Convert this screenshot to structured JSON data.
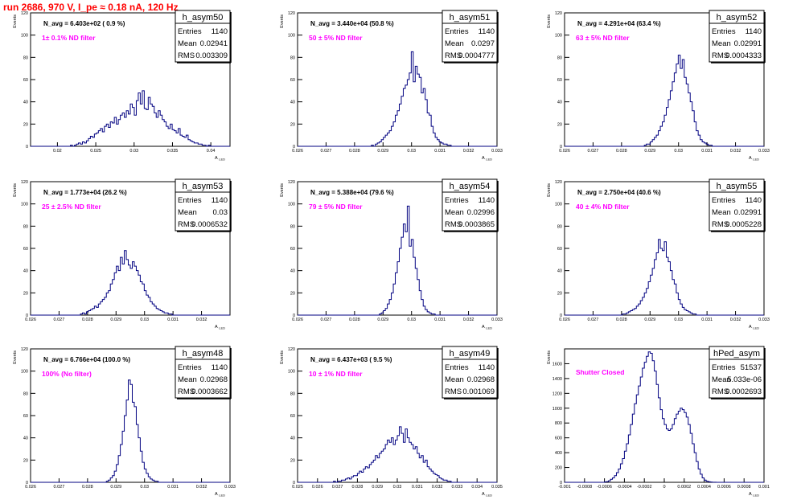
{
  "run_title": "run 2686,   970 V, I_pe ≈ 0.18 nA, 120 Hz",
  "labels": {
    "y_axis": "Events",
    "x_axis": "A",
    "x_axis_sub": "LED",
    "entries": "Entries",
    "mean": "Mean",
    "rms": "RMS"
  },
  "colors": {
    "hist_line": "#000080",
    "filter_text": "#ff00ff",
    "title": "#ff0000"
  },
  "chart_data": [
    {
      "type": "histogram",
      "name": "h_asym50",
      "navg": "N_avg = 6.403e+02 ( 0.9 %)",
      "filter": "1± 0.1% ND filter",
      "entries": "1140",
      "mean": "0.02941",
      "rms": "0.003309",
      "xlim": [
        0.0165,
        0.0425
      ],
      "ylim": [
        0,
        120
      ],
      "xticks": [
        0.02,
        0.025,
        0.03,
        0.035,
        0.04
      ],
      "xtick_labels": [
        "0.02",
        "0.025",
        "0.03",
        "0.035",
        "0.04"
      ],
      "yticks": [
        0,
        20,
        40,
        60,
        80,
        100,
        120
      ],
      "x_start": 0.0165,
      "bin_width": 0.00026,
      "values": [
        0,
        0,
        0,
        0,
        0,
        0,
        0,
        0,
        0,
        0,
        0,
        0,
        0,
        0,
        0,
        0,
        0,
        0,
        0,
        0,
        1,
        0,
        1,
        2,
        3,
        2,
        4,
        3,
        5,
        7,
        9,
        8,
        11,
        12,
        14,
        16,
        13,
        18,
        20,
        17,
        22,
        21,
        26,
        20,
        24,
        28,
        30,
        26,
        32,
        29,
        38,
        35,
        28,
        41,
        48,
        38,
        50,
        34,
        33,
        44,
        38,
        36,
        30,
        26,
        32,
        28,
        24,
        22,
        18,
        16,
        20,
        15,
        14,
        12,
        16,
        10,
        9,
        8,
        10,
        6,
        5,
        4,
        3,
        3,
        2,
        2,
        1,
        1,
        0,
        1,
        0,
        0,
        0,
        0,
        0,
        0,
        0,
        0,
        0,
        0
      ]
    },
    {
      "type": "histogram",
      "name": "h_asym51",
      "navg": "N_avg = 3.440e+04 (50.8 %)",
      "filter": "50 ± 5% ND filter",
      "entries": "1140",
      "mean": "0.0297",
      "rms": "0.0004777",
      "xlim": [
        0.026,
        0.033
      ],
      "ylim": [
        0,
        120
      ],
      "xticks": [
        0.026,
        0.027,
        0.028,
        0.029,
        0.03,
        0.031,
        0.032,
        0.033
      ],
      "xtick_labels": [
        "0.026",
        "0.027",
        "0.028",
        "0.029",
        "0.03",
        "0.031",
        "0.032",
        "0.033"
      ],
      "yticks": [
        0,
        20,
        40,
        60,
        80,
        100,
        120
      ],
      "x_start": 0.026,
      "bin_width": 7e-05,
      "values": [
        0,
        0,
        0,
        0,
        0,
        0,
        0,
        0,
        0,
        0,
        0,
        0,
        0,
        0,
        0,
        0,
        0,
        0,
        0,
        0,
        0,
        0,
        0,
        0,
        0,
        0,
        0,
        0,
        0,
        0,
        0,
        0,
        0,
        0,
        0,
        0,
        0,
        1,
        0,
        2,
        3,
        4,
        6,
        8,
        10,
        12,
        14,
        18,
        22,
        28,
        32,
        38,
        45,
        52,
        55,
        60,
        66,
        85,
        58,
        72,
        65,
        62,
        48,
        52,
        42,
        30,
        28,
        18,
        12,
        8,
        6,
        4,
        3,
        2,
        2,
        1,
        1,
        0,
        0,
        0,
        0,
        0,
        0,
        0,
        0,
        0,
        0,
        0,
        0,
        0,
        0,
        0,
        0,
        0,
        0,
        0,
        0,
        0,
        0,
        0
      ]
    },
    {
      "type": "histogram",
      "name": "h_asym52",
      "navg": "N_avg = 4.291e+04 (63.4 %)",
      "filter": "63 ± 5% ND filter",
      "entries": "1140",
      "mean": "0.02991",
      "rms": "0.0004333",
      "xlim": [
        0.026,
        0.033
      ],
      "ylim": [
        0,
        120
      ],
      "xticks": [
        0.026,
        0.027,
        0.028,
        0.029,
        0.03,
        0.031,
        0.032,
        0.033
      ],
      "xtick_labels": [
        "0.026",
        "0.027",
        "0.028",
        "0.029",
        "0.03",
        "0.031",
        "0.032",
        "0.033"
      ],
      "yticks": [
        0,
        20,
        40,
        60,
        80,
        100,
        120
      ],
      "x_start": 0.026,
      "bin_width": 7e-05,
      "values": [
        0,
        0,
        0,
        0,
        0,
        0,
        0,
        0,
        0,
        0,
        0,
        0,
        0,
        0,
        0,
        0,
        0,
        0,
        0,
        0,
        0,
        0,
        0,
        0,
        0,
        0,
        0,
        0,
        0,
        0,
        0,
        0,
        0,
        0,
        0,
        0,
        0,
        0,
        0,
        0,
        1,
        2,
        2,
        4,
        6,
        8,
        10,
        14,
        18,
        22,
        28,
        35,
        42,
        50,
        58,
        66,
        74,
        82,
        70,
        78,
        62,
        56,
        48,
        40,
        32,
        22,
        14,
        10,
        6,
        4,
        3,
        2,
        1,
        1,
        0,
        0,
        0,
        0,
        0,
        0,
        0,
        0,
        0,
        0,
        0,
        0,
        0,
        0,
        0,
        0,
        0,
        0,
        0,
        0,
        0,
        0,
        0,
        0,
        0,
        0
      ]
    },
    {
      "type": "histogram",
      "name": "h_asym53",
      "navg": "N_avg = 1.773e+04 (26.2 %)",
      "filter": "25 ± 2.5% ND filter",
      "entries": "1140",
      "mean": "0.03",
      "rms": "0.0006532",
      "xlim": [
        0.026,
        0.033
      ],
      "ylim": [
        0,
        120
      ],
      "xticks": [
        0.026,
        0.027,
        0.028,
        0.029,
        0.03,
        0.031,
        0.032
      ],
      "xtick_labels": [
        "0.026",
        "0.027",
        "0.028",
        "0.029",
        "0.03",
        "0.031",
        "0.032"
      ],
      "yticks": [
        0,
        20,
        40,
        60,
        80,
        100,
        120
      ],
      "x_start": 0.026,
      "bin_width": 7e-05,
      "values": [
        0,
        0,
        0,
        0,
        0,
        0,
        0,
        0,
        0,
        0,
        0,
        0,
        0,
        0,
        0,
        0,
        0,
        0,
        0,
        0,
        0,
        0,
        0,
        0,
        0,
        1,
        2,
        1,
        3,
        4,
        5,
        6,
        8,
        7,
        10,
        12,
        14,
        16,
        20,
        22,
        28,
        32,
        38,
        44,
        40,
        52,
        46,
        58,
        50,
        45,
        42,
        48,
        44,
        40,
        36,
        30,
        28,
        22,
        18,
        16,
        12,
        10,
        8,
        6,
        5,
        4,
        3,
        2,
        2,
        1,
        1,
        0,
        0,
        0,
        0,
        0,
        0,
        0,
        0,
        0,
        0,
        0,
        0,
        0,
        0,
        0,
        0,
        0,
        0,
        0,
        0,
        0,
        0,
        0,
        0,
        0,
        0,
        0,
        0,
        0
      ]
    },
    {
      "type": "histogram",
      "name": "h_asym54",
      "navg": "N_avg = 5.388e+04 (79.6 %)",
      "filter": "79 ± 5% ND filter",
      "entries": "1140",
      "mean": "0.02996",
      "rms": "0.0003865",
      "xlim": [
        0.026,
        0.033
      ],
      "ylim": [
        0,
        120
      ],
      "xticks": [
        0.026,
        0.027,
        0.028,
        0.029,
        0.03,
        0.031,
        0.032,
        0.033
      ],
      "xtick_labels": [
        "0.026",
        "0.027",
        "0.028",
        "0.029",
        "0.03",
        "0.031",
        "0.032",
        "0.033"
      ],
      "yticks": [
        0,
        20,
        40,
        60,
        80,
        100,
        120
      ],
      "x_start": 0.026,
      "bin_width": 7e-05,
      "values": [
        0,
        0,
        0,
        0,
        0,
        0,
        0,
        0,
        0,
        0,
        0,
        0,
        0,
        0,
        0,
        0,
        0,
        0,
        0,
        0,
        0,
        0,
        0,
        0,
        0,
        0,
        0,
        0,
        0,
        0,
        0,
        0,
        0,
        0,
        0,
        0,
        0,
        0,
        0,
        0,
        0,
        1,
        2,
        4,
        6,
        10,
        14,
        20,
        28,
        38,
        48,
        60,
        70,
        82,
        75,
        98,
        62,
        68,
        52,
        42,
        32,
        22,
        14,
        8,
        5,
        3,
        2,
        1,
        1,
        0,
        0,
        0,
        0,
        0,
        0,
        0,
        0,
        0,
        0,
        0,
        0,
        0,
        0,
        0,
        0,
        0,
        0,
        0,
        0,
        0,
        0,
        0,
        0,
        0,
        0,
        0,
        0,
        0,
        0,
        0
      ]
    },
    {
      "type": "histogram",
      "name": "h_asym55",
      "navg": "N_avg = 2.750e+04 (40.6 %)",
      "filter": "40 ± 4% ND filter",
      "entries": "1140",
      "mean": "0.02991",
      "rms": "0.0005228",
      "xlim": [
        0.026,
        0.033
      ],
      "ylim": [
        0,
        120
      ],
      "xticks": [
        0.026,
        0.027,
        0.028,
        0.029,
        0.03,
        0.031,
        0.032,
        0.033
      ],
      "xtick_labels": [
        "0.026",
        "0.027",
        "0.028",
        "0.029",
        "0.03",
        "0.031",
        "0.032",
        "0.033"
      ],
      "yticks": [
        0,
        20,
        40,
        60,
        80,
        100,
        120
      ],
      "x_start": 0.026,
      "bin_width": 7e-05,
      "values": [
        0,
        0,
        0,
        0,
        0,
        0,
        0,
        0,
        0,
        0,
        0,
        0,
        0,
        0,
        0,
        0,
        0,
        0,
        0,
        0,
        0,
        0,
        0,
        0,
        0,
        0,
        0,
        0,
        0,
        1,
        1,
        2,
        3,
        4,
        5,
        6,
        8,
        10,
        13,
        16,
        20,
        24,
        30,
        36,
        42,
        50,
        56,
        68,
        60,
        58,
        66,
        52,
        48,
        40,
        32,
        28,
        20,
        14,
        10,
        7,
        5,
        4,
        3,
        2,
        1,
        1,
        0,
        0,
        0,
        0,
        0,
        0,
        0,
        0,
        0,
        0,
        0,
        0,
        0,
        0,
        0,
        0,
        0,
        0,
        0,
        0,
        0,
        0,
        0,
        0,
        0,
        0,
        0,
        0,
        0,
        0,
        0,
        0,
        0,
        0
      ]
    },
    {
      "type": "histogram",
      "name": "h_asym48",
      "navg": "N_avg = 6.766e+04 (100.0 %)",
      "filter": "100% (No filter)",
      "entries": "1140",
      "mean": "0.02968",
      "rms": "0.0003662",
      "xlim": [
        0.026,
        0.033
      ],
      "ylim": [
        0,
        120
      ],
      "xticks": [
        0.026,
        0.027,
        0.028,
        0.029,
        0.03,
        0.031,
        0.032,
        0.033
      ],
      "xtick_labels": [
        "0.026",
        "0.027",
        "0.028",
        "0.029",
        "0.03",
        "0.031",
        "0.032",
        "0.033"
      ],
      "yticks": [
        0,
        20,
        40,
        60,
        80,
        100,
        120
      ],
      "x_start": 0.026,
      "bin_width": 7e-05,
      "values": [
        0,
        0,
        0,
        0,
        0,
        0,
        0,
        0,
        0,
        0,
        0,
        0,
        0,
        0,
        0,
        0,
        0,
        0,
        0,
        0,
        0,
        0,
        0,
        0,
        0,
        0,
        0,
        0,
        0,
        0,
        0,
        0,
        0,
        0,
        0,
        0,
        0,
        0,
        1,
        2,
        4,
        6,
        10,
        16,
        24,
        34,
        46,
        60,
        74,
        92,
        88,
        72,
        68,
        52,
        40,
        28,
        18,
        12,
        8,
        5,
        3,
        2,
        1,
        1,
        0,
        0,
        0,
        0,
        0,
        0,
        0,
        0,
        0,
        0,
        0,
        0,
        0,
        0,
        0,
        0,
        0,
        0,
        0,
        0,
        0,
        0,
        0,
        0,
        0,
        0,
        0,
        0,
        0,
        0,
        0,
        0,
        0,
        0,
        0,
        0
      ]
    },
    {
      "type": "histogram",
      "name": "h_asym49",
      "navg": "N_avg = 6.437e+03 ( 9.5 %)",
      "filter": "10 ± 1% ND filter",
      "entries": "1140",
      "mean": "0.02968",
      "rms": "0.001069",
      "xlim": [
        0.025,
        0.035
      ],
      "ylim": [
        0,
        120
      ],
      "xticks": [
        0.025,
        0.026,
        0.027,
        0.028,
        0.029,
        0.03,
        0.031,
        0.032,
        0.033,
        0.034,
        0.035
      ],
      "xtick_labels": [
        "0.025",
        "0.026",
        "0.027",
        "0.028",
        "0.029",
        "0.03",
        "0.031",
        "0.032",
        "0.033",
        "0.034",
        "0.035"
      ],
      "yticks": [
        0,
        20,
        40,
        60,
        80,
        100,
        120
      ],
      "x_start": 0.025,
      "bin_width": 0.0001,
      "values": [
        0,
        0,
        0,
        0,
        0,
        0,
        0,
        0,
        0,
        0,
        0,
        0,
        0,
        0,
        0,
        0,
        0,
        0,
        1,
        0,
        1,
        1,
        2,
        2,
        3,
        4,
        3,
        5,
        6,
        6,
        8,
        10,
        9,
        12,
        14,
        13,
        16,
        18,
        20,
        24,
        22,
        26,
        28,
        30,
        34,
        38,
        36,
        40,
        34,
        38,
        42,
        50,
        44,
        36,
        48,
        40,
        36,
        34,
        30,
        32,
        26,
        22,
        24,
        18,
        20,
        14,
        12,
        10,
        8,
        7,
        6,
        4,
        3,
        2,
        2,
        1,
        1,
        0,
        0,
        0,
        0,
        0,
        0,
        0,
        0,
        0,
        0,
        0,
        0,
        0,
        0,
        0,
        0,
        0,
        0,
        0,
        0,
        0,
        0,
        0
      ]
    },
    {
      "type": "histogram",
      "name": "hPed_asym",
      "navg": "",
      "filter": "Shutter Closed",
      "entries": "51537",
      "mean": "5.033e-06",
      "rms": "0.0002693",
      "xlim": [
        -0.001,
        0.001
      ],
      "ylim": [
        0,
        1800
      ],
      "xticks": [
        -0.001,
        -0.0008,
        -0.0006,
        -0.0004,
        -0.0002,
        0,
        0.0002,
        0.0004,
        0.0006,
        0.0008,
        0.001
      ],
      "xtick_labels": [
        "-0.001",
        "-0.0008",
        "-0.0006",
        "-0.0004",
        "-0.0002",
        "0",
        "0.0002",
        "0.0004",
        "0.0006",
        "0.0008",
        "0.001"
      ],
      "yticks": [
        0,
        200,
        400,
        600,
        800,
        1000,
        1200,
        1400,
        1600
      ],
      "x_start": -0.001,
      "bin_width": 2e-05,
      "values": [
        0,
        0,
        0,
        0,
        0,
        0,
        0,
        0,
        0,
        0,
        0,
        0,
        0,
        0,
        0,
        0,
        0,
        0,
        0,
        0,
        5,
        10,
        20,
        40,
        60,
        90,
        130,
        180,
        250,
        320,
        420,
        520,
        640,
        780,
        920,
        1060,
        1180,
        1300,
        1420,
        1540,
        1620,
        1700,
        1760,
        1740,
        1640,
        1500,
        1320,
        1140,
        980,
        860,
        780,
        720,
        700,
        720,
        780,
        860,
        920,
        960,
        1000,
        980,
        940,
        880,
        780,
        660,
        520,
        400,
        280,
        180,
        110,
        60,
        30,
        15,
        8,
        4,
        2,
        1,
        0,
        0,
        0,
        0,
        0,
        0,
        0,
        0,
        0,
        0,
        0,
        0,
        0,
        0,
        0,
        0,
        0,
        0,
        0,
        0,
        0,
        0,
        0,
        0
      ]
    }
  ]
}
